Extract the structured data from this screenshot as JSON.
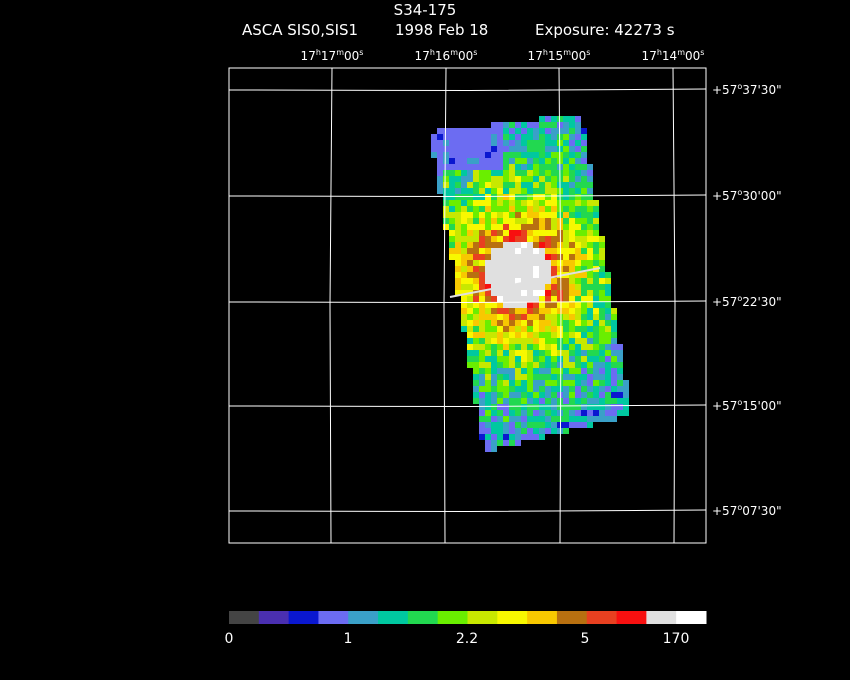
{
  "header": {
    "title": "S34-175",
    "instrument": "ASCA SIS0,SIS1",
    "date": "1998 Feb 18",
    "exposure": "Exposure: 42273 s"
  },
  "ra_axis": [
    {
      "h": "17",
      "m": "17",
      "s": "00"
    },
    {
      "h": "17",
      "m": "16",
      "s": "00"
    },
    {
      "h": "17",
      "m": "15",
      "s": "00"
    },
    {
      "h": "17",
      "m": "14",
      "s": "00"
    }
  ],
  "dec_axis": [
    {
      "sign": "+",
      "d": "57",
      "m": "37",
      "s": "30"
    },
    {
      "sign": "+",
      "d": "57",
      "m": "30",
      "s": "00"
    },
    {
      "sign": "+",
      "d": "57",
      "m": "22",
      "s": "30"
    },
    {
      "sign": "+",
      "d": "57",
      "m": "15",
      "s": "00"
    },
    {
      "sign": "+",
      "d": "57",
      "m": "07",
      "s": "30"
    }
  ],
  "colorbar": {
    "colors": [
      "#444444",
      "#4a2fb0",
      "#0a17d0",
      "#6c6cf2",
      "#3aa0c8",
      "#00c8a0",
      "#22d850",
      "#6aee00",
      "#c8e800",
      "#f8f800",
      "#f8c800",
      "#b87010",
      "#e84020",
      "#f81010",
      "#e0e0e0",
      "#ffffff"
    ],
    "tick_labels": [
      "0",
      "1",
      "2.2",
      "5",
      "170"
    ]
  }
}
